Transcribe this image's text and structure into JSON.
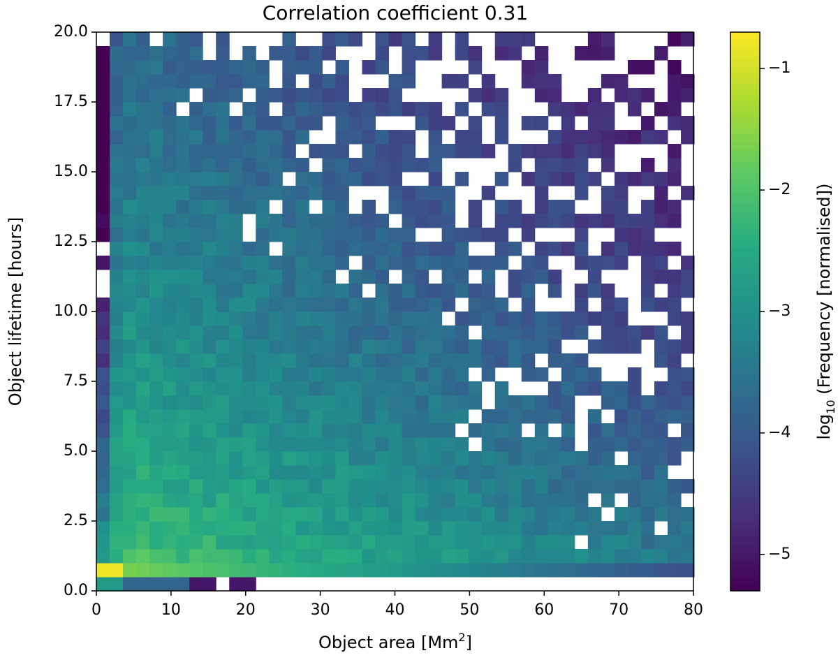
{
  "chart_data": {
    "type": "heatmap",
    "title": "Correlation coefficient  0.31",
    "xlabel": "Object area [Mm",
    "xlabel_sup": "2",
    "xlabel_end": "]",
    "ylabel": "Object lifetime [hours]",
    "colorbar_label_pre": "log",
    "colorbar_label_sub": "10",
    "colorbar_label_post": " (Frequency [normalised])",
    "xlim": [
      0,
      80
    ],
    "ylim": [
      0,
      20
    ],
    "x_bins": 45,
    "y_bins": 40,
    "x_bin_width": 1.78,
    "y_bin_width": 0.5,
    "colormap": "viridis",
    "clim": [
      -5.3,
      -0.7
    ],
    "x_ticks": [
      0,
      10,
      20,
      30,
      40,
      50,
      60,
      70,
      80
    ],
    "x_tick_labels": [
      "0",
      "10",
      "20",
      "30",
      "40",
      "50",
      "60",
      "70",
      "80"
    ],
    "y_ticks": [
      0,
      2.5,
      5,
      7.5,
      10,
      12.5,
      15,
      17.5,
      20
    ],
    "y_tick_labels": [
      "0.0",
      "2.5",
      "5.0",
      "7.5",
      "10.0",
      "12.5",
      "15.0",
      "17.5",
      "20.0"
    ],
    "colorbar_ticks": [
      -1,
      -2,
      -3,
      -4,
      -5
    ],
    "colorbar_tick_labels": [
      "−1",
      "−2",
      "−3",
      "−4",
      "−5"
    ],
    "peak_cell": {
      "x": 2.7,
      "y": 0.75,
      "value": -0.8
    },
    "description_of_values": "Log10 normalised frequency is highest (about -0.8) at small area (2-5 Mm^2) and short lifetime (0.5-1 h), decreasing to about -5 toward large area and long lifetime; many empty (white) bins at large area/long lifetime."
  }
}
